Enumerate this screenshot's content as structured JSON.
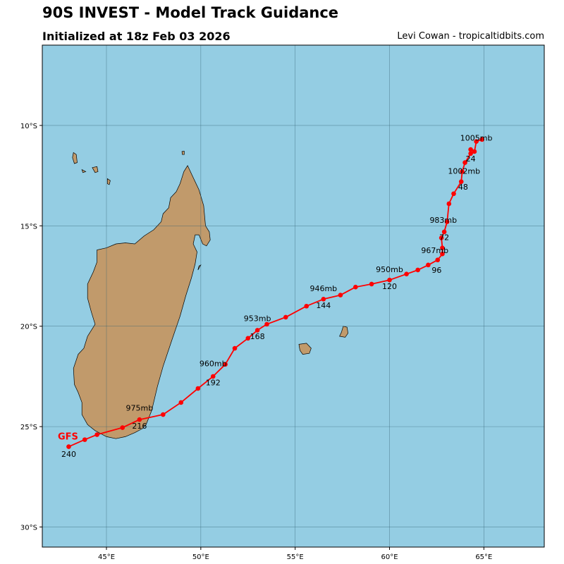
{
  "header": {
    "title": "90S INVEST - Model Track Guidance",
    "subtitle": "Initialized at 18z Feb 03 2026",
    "credit": "Levi Cowan - tropicaltidbits.com"
  },
  "colors": {
    "ocean": "#94cde3",
    "land": "#c19a6b",
    "track": "#ff0000",
    "grid": "#2f5f6f"
  },
  "map": {
    "lon_range": [
      41.6,
      68.2
    ],
    "lat_range": [
      -31.0,
      -6.0
    ],
    "lon_ticks": [
      {
        "value": 45,
        "label": "45°E"
      },
      {
        "value": 50,
        "label": "50°E"
      },
      {
        "value": 55,
        "label": "55°E"
      },
      {
        "value": 60,
        "label": "60°E"
      },
      {
        "value": 65,
        "label": "65°E"
      }
    ],
    "lat_ticks": [
      {
        "value": -10,
        "label": "10°S"
      },
      {
        "value": -15,
        "label": "15°S"
      },
      {
        "value": -20,
        "label": "20°S"
      },
      {
        "value": -25,
        "label": "25°S"
      },
      {
        "value": -30,
        "label": "30°S"
      }
    ]
  },
  "land": {
    "madagascar": [
      [
        49.3,
        -12.0
      ],
      [
        49.6,
        -12.6
      ],
      [
        49.9,
        -13.2
      ],
      [
        50.15,
        -14.0
      ],
      [
        50.25,
        -15.0
      ],
      [
        50.45,
        -15.3
      ],
      [
        50.5,
        -15.7
      ],
      [
        50.3,
        -16.0
      ],
      [
        50.1,
        -15.9
      ],
      [
        49.9,
        -15.45
      ],
      [
        49.7,
        -15.45
      ],
      [
        49.6,
        -15.9
      ],
      [
        49.8,
        -16.3
      ],
      [
        49.7,
        -16.9
      ],
      [
        49.5,
        -17.6
      ],
      [
        49.2,
        -18.5
      ],
      [
        48.9,
        -19.5
      ],
      [
        48.5,
        -20.6
      ],
      [
        48.0,
        -22.0
      ],
      [
        47.7,
        -23.0
      ],
      [
        47.4,
        -24.2
      ],
      [
        47.1,
        -24.9
      ],
      [
        46.9,
        -25.1
      ],
      [
        46.5,
        -25.3
      ],
      [
        46.0,
        -25.5
      ],
      [
        45.5,
        -25.6
      ],
      [
        45.0,
        -25.5
      ],
      [
        44.4,
        -25.2
      ],
      [
        44.0,
        -24.9
      ],
      [
        43.7,
        -24.4
      ],
      [
        43.7,
        -23.8
      ],
      [
        43.5,
        -23.3
      ],
      [
        43.3,
        -22.9
      ],
      [
        43.25,
        -22.1
      ],
      [
        43.5,
        -21.4
      ],
      [
        43.8,
        -21.1
      ],
      [
        44.0,
        -20.5
      ],
      [
        44.4,
        -19.9
      ],
      [
        44.2,
        -19.3
      ],
      [
        44.0,
        -18.6
      ],
      [
        44.0,
        -17.9
      ],
      [
        44.3,
        -17.3
      ],
      [
        44.5,
        -16.8
      ],
      [
        44.5,
        -16.2
      ],
      [
        45.0,
        -16.1
      ],
      [
        45.5,
        -15.9
      ],
      [
        46.0,
        -15.85
      ],
      [
        46.5,
        -15.9
      ],
      [
        47.0,
        -15.5
      ],
      [
        47.5,
        -15.2
      ],
      [
        47.9,
        -14.8
      ],
      [
        48.0,
        -14.4
      ],
      [
        48.3,
        -14.1
      ],
      [
        48.4,
        -13.6
      ],
      [
        48.7,
        -13.3
      ],
      [
        48.9,
        -12.9
      ],
      [
        49.1,
        -12.3
      ],
      [
        49.3,
        -12.0
      ]
    ],
    "reunion": [
      [
        55.2,
        -20.9
      ],
      [
        55.6,
        -20.85
      ],
      [
        55.85,
        -21.1
      ],
      [
        55.75,
        -21.35
      ],
      [
        55.4,
        -21.4
      ],
      [
        55.25,
        -21.2
      ],
      [
        55.2,
        -20.9
      ]
    ],
    "mauritius": [
      [
        57.55,
        -20.0
      ],
      [
        57.75,
        -20.05
      ],
      [
        57.8,
        -20.35
      ],
      [
        57.65,
        -20.55
      ],
      [
        57.35,
        -20.5
      ],
      [
        57.45,
        -20.3
      ],
      [
        57.55,
        -20.0
      ]
    ],
    "comoros": [
      [
        [
          43.25,
          -11.35
        ],
        [
          43.4,
          -11.45
        ],
        [
          43.45,
          -11.85
        ],
        [
          43.3,
          -11.9
        ],
        [
          43.2,
          -11.6
        ],
        [
          43.25,
          -11.35
        ]
      ],
      [
        [
          43.7,
          -12.2
        ],
        [
          43.9,
          -12.3
        ],
        [
          43.75,
          -12.35
        ],
        [
          43.7,
          -12.2
        ]
      ],
      [
        [
          44.25,
          -12.1
        ],
        [
          44.5,
          -12.05
        ],
        [
          44.55,
          -12.3
        ],
        [
          44.4,
          -12.35
        ],
        [
          44.25,
          -12.1
        ]
      ],
      [
        [
          45.05,
          -12.65
        ],
        [
          45.2,
          -12.75
        ],
        [
          45.15,
          -12.95
        ],
        [
          45.05,
          -12.9
        ],
        [
          45.05,
          -12.65
        ]
      ],
      [
        [
          49.0,
          -11.3
        ],
        [
          49.12,
          -11.28
        ],
        [
          49.12,
          -11.45
        ],
        [
          49.02,
          -11.45
        ],
        [
          49.0,
          -11.3
        ]
      ],
      [
        [
          49.9,
          -17.0
        ],
        [
          50.0,
          -16.95
        ],
        [
          49.85,
          -17.2
        ],
        [
          49.9,
          -17.0
        ]
      ]
    ]
  },
  "track": {
    "model": "GFS",
    "points": [
      [
        64.9,
        -10.7
      ],
      [
        64.6,
        -10.8
      ],
      [
        64.5,
        -11.3
      ],
      [
        64.3,
        -11.2
      ],
      [
        64.3,
        -11.4
      ],
      [
        64.0,
        -11.85
      ],
      [
        63.85,
        -12.3
      ],
      [
        63.8,
        -12.8
      ],
      [
        63.4,
        -13.4
      ],
      [
        63.15,
        -13.9
      ],
      [
        63.05,
        -14.8
      ],
      [
        62.9,
        -15.3
      ],
      [
        62.75,
        -15.6
      ],
      [
        62.8,
        -16.1
      ],
      [
        62.8,
        -16.4
      ],
      [
        62.55,
        -16.7
      ],
      [
        62.05,
        -16.95
      ],
      [
        61.5,
        -17.2
      ],
      [
        60.9,
        -17.4
      ],
      [
        60.0,
        -17.7
      ],
      [
        59.05,
        -17.9
      ],
      [
        58.2,
        -18.05
      ],
      [
        57.4,
        -18.45
      ],
      [
        56.5,
        -18.65
      ],
      [
        55.6,
        -19.0
      ],
      [
        54.5,
        -19.55
      ],
      [
        53.5,
        -19.9
      ],
      [
        53.0,
        -20.2
      ],
      [
        52.5,
        -20.6
      ],
      [
        51.8,
        -21.1
      ],
      [
        51.3,
        -21.9
      ],
      [
        50.65,
        -22.5
      ],
      [
        49.85,
        -23.1
      ],
      [
        48.95,
        -23.8
      ],
      [
        48.0,
        -24.4
      ],
      [
        46.75,
        -24.65
      ],
      [
        45.85,
        -25.05
      ],
      [
        44.5,
        -25.4
      ],
      [
        43.85,
        -25.65
      ],
      [
        43.0,
        -26.0
      ]
    ],
    "pressure_labels": [
      {
        "text": "1005mb",
        "lon": 64.6,
        "lat": -10.75
      },
      {
        "text": "1002mb",
        "lon": 63.95,
        "lat": -12.4
      },
      {
        "text": "983mb",
        "lon": 62.85,
        "lat": -14.85
      },
      {
        "text": "967mb",
        "lon": 62.4,
        "lat": -16.35
      },
      {
        "text": "950mb",
        "lon": 60.0,
        "lat": -17.3
      },
      {
        "text": "946mb",
        "lon": 56.5,
        "lat": -18.25
      },
      {
        "text": "953mb",
        "lon": 53.0,
        "lat": -19.75
      },
      {
        "text": "960mb",
        "lon": 50.65,
        "lat": -22.0
      },
      {
        "text": "975mb",
        "lon": 46.75,
        "lat": -24.2
      }
    ],
    "hour_labels": [
      {
        "text": "24",
        "lon": 64.3,
        "lat": -11.8
      },
      {
        "text": "48",
        "lon": 63.9,
        "lat": -13.2
      },
      {
        "text": "72",
        "lon": 62.9,
        "lat": -15.7
      },
      {
        "text": "96",
        "lon": 62.5,
        "lat": -17.35
      },
      {
        "text": "120",
        "lon": 60.0,
        "lat": -18.15
      },
      {
        "text": "144",
        "lon": 56.5,
        "lat": -19.1
      },
      {
        "text": "168",
        "lon": 53.0,
        "lat": -20.65
      },
      {
        "text": "192",
        "lon": 50.65,
        "lat": -22.95
      },
      {
        "text": "216",
        "lon": 46.75,
        "lat": -25.1
      },
      {
        "text": "240",
        "lon": 43.0,
        "lat": -26.5
      }
    ]
  }
}
